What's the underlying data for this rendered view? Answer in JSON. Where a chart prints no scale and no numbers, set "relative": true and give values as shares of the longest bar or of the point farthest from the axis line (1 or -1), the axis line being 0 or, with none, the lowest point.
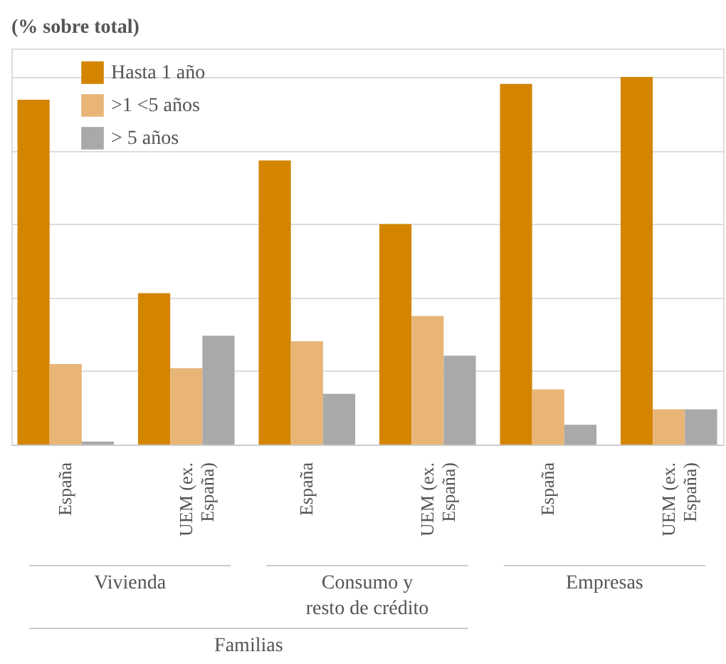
{
  "chart_data": {
    "type": "bar",
    "title": "(% sobre total)",
    "relative": true,
    "grid": "y",
    "legend": "top left",
    "categories": [
      "España",
      "UEM (ex.\nEspaña)",
      "España",
      "UEM (ex.\nEspaña)",
      "España",
      "UEM (ex.\nEspaña)"
    ],
    "series": [
      {
        "name": "Hasta 1 año",
        "color": "#d38500",
        "values": [
          0.938,
          0.412,
          0.773,
          0.6,
          0.981,
          1
        ]
      },
      {
        "name": ">1 <5 años",
        "color": "#e8b577",
        "values": [
          0.219,
          0.208,
          0.281,
          0.35,
          0.15,
          0.096
        ]
      },
      {
        "name": "> 5 años",
        "color": "#a9a9a9",
        "values": [
          0.008,
          0.296,
          0.138,
          0.242,
          0.054,
          0.096
        ]
      }
    ],
    "annotations": [
      "Vivienda",
      "Consumo y\nresto de crédito",
      "Empresas",
      "Familias"
    ]
  }
}
